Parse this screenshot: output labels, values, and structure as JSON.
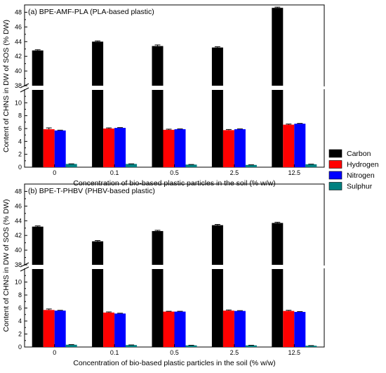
{
  "chart_data": [
    {
      "type": "bar",
      "title": "(a) BPE-AMF-PLA (PLA-based plastic)",
      "xlabel": "Concentration of bio-based plastic particles in the soil (% w/w)",
      "ylabel": "Content of CHNS in DW of SOS (% DW)",
      "categories": [
        "0",
        "0.1",
        "0.5",
        "2.5",
        "12.5"
      ],
      "axis_break": {
        "lower": [
          0,
          12
        ],
        "upper": [
          38,
          49
        ]
      },
      "yticks_lower": [
        "0",
        "2",
        "4",
        "6",
        "8",
        "10"
      ],
      "yticks_upper": [
        "38",
        "40",
        "42",
        "44",
        "46",
        "48"
      ],
      "series": [
        {
          "name": "Carbon",
          "color": "#000000",
          "values": [
            42.8,
            44.0,
            43.4,
            43.2,
            48.6
          ],
          "errors": [
            0.1,
            0.1,
            0.15,
            0.1,
            0.1
          ]
        },
        {
          "name": "Hydrogen",
          "color": "#ff0000",
          "values": [
            5.9,
            6.0,
            5.8,
            5.75,
            6.6
          ],
          "errors": [
            0.2,
            0.1,
            0.1,
            0.1,
            0.1
          ]
        },
        {
          "name": "Nitrogen",
          "color": "#0000ff",
          "values": [
            5.7,
            6.1,
            5.9,
            5.9,
            6.75
          ],
          "errors": [
            0.05,
            0.05,
            0.05,
            0.05,
            0.05
          ]
        },
        {
          "name": "Sulphur",
          "color": "#008080",
          "values": [
            0.5,
            0.5,
            0.4,
            0.35,
            0.45
          ],
          "errors": [
            0.02,
            0.02,
            0.02,
            0.02,
            0.02
          ]
        }
      ]
    },
    {
      "type": "bar",
      "title": "(b) BPE-T-PHBV (PHBV-based plastic)",
      "xlabel": "Concentration of bio-based plastic particles in the soil (% w/w)",
      "ylabel": "Content of CHNS in DW of SOS (% DW)",
      "categories": [
        "0",
        "0.1",
        "0.5",
        "2.5",
        "12.5"
      ],
      "axis_break": {
        "lower": [
          0,
          12
        ],
        "upper": [
          38,
          49
        ]
      },
      "yticks_lower": [
        "0",
        "2",
        "4",
        "6",
        "8",
        "10"
      ],
      "yticks_upper": [
        "38",
        "40",
        "42",
        "44",
        "46",
        "48"
      ],
      "series": [
        {
          "name": "Carbon",
          "color": "#000000",
          "values": [
            43.2,
            41.2,
            42.6,
            43.4,
            43.7
          ],
          "errors": [
            0.1,
            0.1,
            0.1,
            0.1,
            0.1
          ]
        },
        {
          "name": "Hydrogen",
          "color": "#ff0000",
          "values": [
            5.7,
            5.3,
            5.45,
            5.6,
            5.55
          ],
          "errors": [
            0.15,
            0.1,
            0.05,
            0.1,
            0.1
          ]
        },
        {
          "name": "Nitrogen",
          "color": "#0000ff",
          "values": [
            5.6,
            5.15,
            5.45,
            5.55,
            5.4
          ],
          "errors": [
            0.05,
            0.05,
            0.05,
            0.05,
            0.05
          ]
        },
        {
          "name": "Sulphur",
          "color": "#008080",
          "values": [
            0.35,
            0.3,
            0.25,
            0.25,
            0.2
          ],
          "errors": [
            0.02,
            0.02,
            0.02,
            0.02,
            0.02
          ]
        }
      ]
    }
  ],
  "legend": {
    "placement": "right-middle",
    "items": [
      {
        "label": "Carbon",
        "color": "#000000"
      },
      {
        "label": "Hydrogen",
        "color": "#ff0000"
      },
      {
        "label": "Nitrogen",
        "color": "#0000ff"
      },
      {
        "label": "Sulphur",
        "color": "#008080"
      }
    ]
  }
}
